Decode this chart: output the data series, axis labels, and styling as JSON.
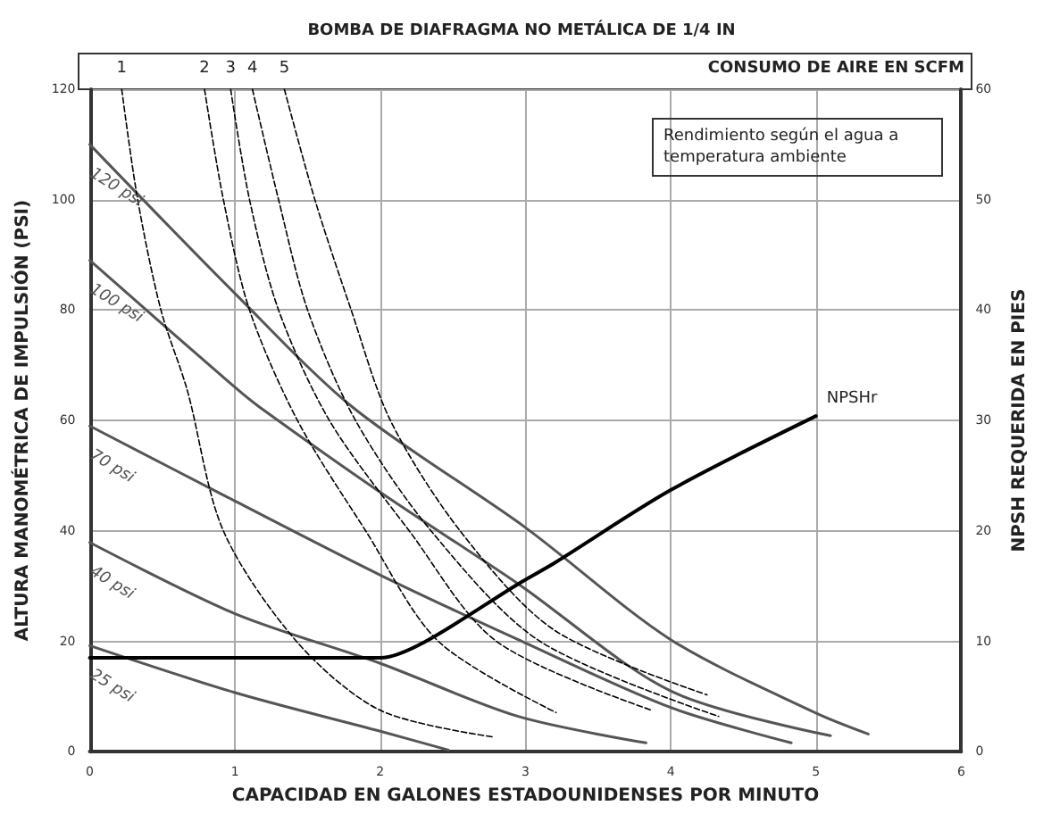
{
  "chart_data": {
    "type": "line",
    "title": "BOMBA DE DIAFRAGMA NO METÁLICA DE 1/4 IN",
    "xlabel": "CAPACIDAD EN GALONES ESTADOUNIDENSES POR MINUTO",
    "ylabel": "ALTURA MANOMÉTRICA DE IMPULSIÓN (PSI)",
    "y2label": "NPSH REQUERIDA EN PIES",
    "xlim": [
      0,
      6
    ],
    "xticks": [
      0,
      1,
      2,
      3,
      4,
      5,
      6
    ],
    "ylim": [
      0,
      120
    ],
    "yticks": [
      0,
      20,
      40,
      60,
      80,
      100,
      120
    ],
    "y2lim": [
      0,
      60
    ],
    "y2ticks": [
      0,
      10,
      20,
      30,
      40,
      50,
      60
    ],
    "grid": true,
    "legend": false,
    "marker": "none",
    "annotations": [
      "CONSUMO DE AIRE EN SCFM",
      "Rendimiento según el agua a temperatura ambiente"
    ],
    "series": [
      {
        "name": "120 psi",
        "color": "#555555",
        "line_style": "solid",
        "x": [
          0,
          1,
          1.81,
          3,
          4,
          5,
          5.36
        ],
        "values": [
          110,
          83,
          62.4,
          40.6,
          20.3,
          7,
          3.2
        ]
      },
      {
        "name": "100 psi",
        "color": "#555555",
        "line_style": "solid",
        "x": [
          0,
          1,
          1.17,
          2,
          2.95,
          4,
          5.1
        ],
        "values": [
          89,
          66,
          62.4,
          47,
          30.4,
          11,
          2.9
        ]
      },
      {
        "name": "70 psi",
        "color": "#555555",
        "line_style": "solid",
        "x": [
          0,
          1,
          2,
          2.95,
          4,
          4.83
        ],
        "values": [
          59,
          45.4,
          32,
          20.3,
          8,
          1.6
        ]
      },
      {
        "name": "40 psi",
        "color": "#555555",
        "line_style": "solid",
        "x": [
          0,
          1,
          2,
          2.95,
          3.83
        ],
        "values": [
          37.9,
          25,
          16,
          6.4,
          1.6
        ]
      },
      {
        "name": "25 psi",
        "color": "#555555",
        "line_style": "solid",
        "x": [
          0,
          1,
          2,
          2.47
        ],
        "values": [
          19.2,
          10.7,
          3.7,
          0.3
        ]
      },
      {
        "name": "1",
        "color": "#000000",
        "line_style": "dashed",
        "x": [
          0.22,
          0.33,
          0.49,
          0.67,
          0.92,
          1.43,
          2,
          2.77
        ],
        "values": [
          120,
          100,
          80,
          65.6,
          40,
          19.8,
          7.5,
          2.7
        ]
      },
      {
        "name": "2",
        "color": "#000000",
        "line_style": "dashed",
        "x": [
          0.79,
          0.92,
          1.1,
          1.43,
          1.9,
          2.4,
          3.21
        ],
        "values": [
          120,
          100,
          80,
          60,
          40,
          20,
          7.1
        ]
      },
      {
        "name": "3",
        "color": "#000000",
        "line_style": "dashed",
        "x": [
          0.97,
          1.1,
          1.3,
          1.65,
          2.2,
          2.8,
          3.87
        ],
        "values": [
          120,
          100,
          80,
          60,
          40,
          20,
          7.5
        ]
      },
      {
        "name": "4",
        "color": "#000000",
        "line_style": "dashed",
        "x": [
          1.12,
          1.3,
          1.5,
          1.83,
          2.35,
          3.1,
          4.33
        ],
        "values": [
          120,
          100,
          80,
          60,
          40,
          20,
          6.4
        ]
      },
      {
        "name": "5",
        "color": "#000000",
        "line_style": "dashed",
        "x": [
          1.34,
          1.55,
          1.8,
          2.07,
          2.55,
          3.2,
          4.25
        ],
        "values": [
          120,
          100,
          80,
          60,
          40,
          22,
          10.3
        ]
      },
      {
        "name": "NPSHr",
        "color": "#000000",
        "line_style": "solid",
        "axis": "y2",
        "x": [
          0,
          1.9,
          2,
          2.3,
          2.95,
          3.2,
          4,
          5
        ],
        "values": [
          8.5,
          8.5,
          8.5,
          9.9,
          15.2,
          17.1,
          23.7,
          30.4
        ]
      }
    ]
  }
}
